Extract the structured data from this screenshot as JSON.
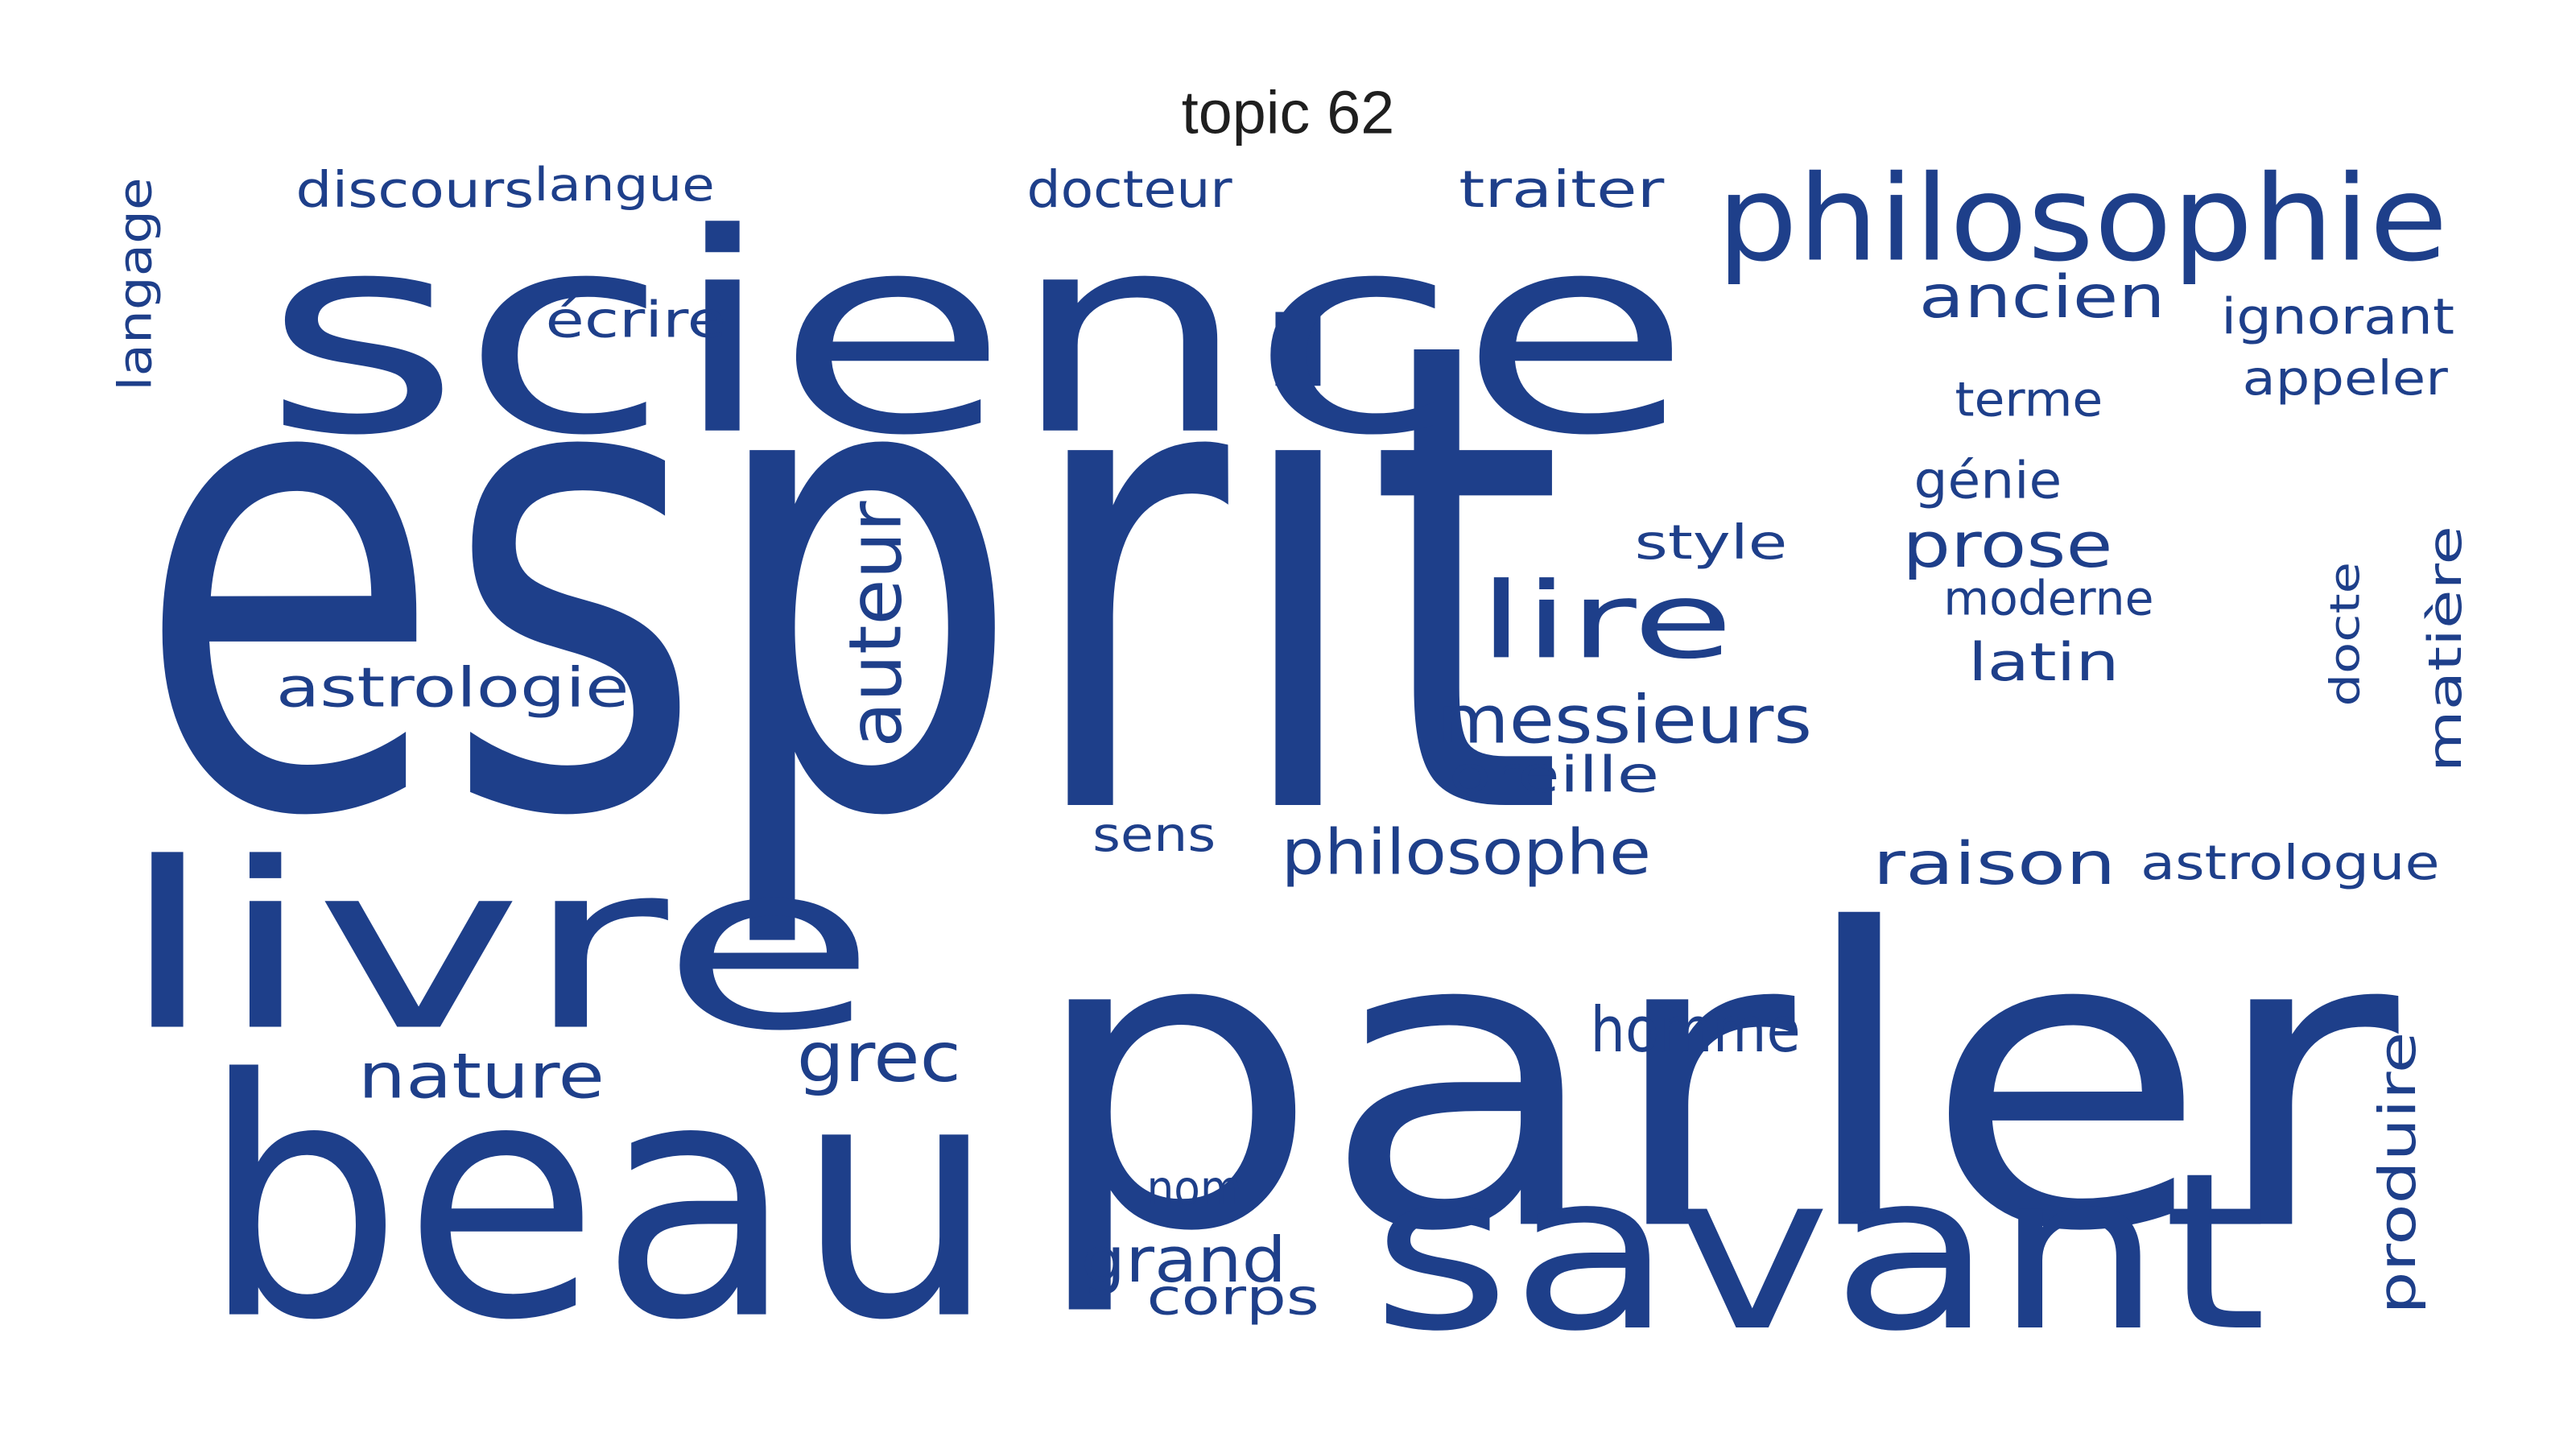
{
  "title": "topic 62",
  "colors": {
    "word": "#1e3f8a",
    "background": "#ffffff",
    "title": "#1f1f1f"
  },
  "words": [
    "esprit",
    "parler",
    "science",
    "beau",
    "savant",
    "livre",
    "philosophie",
    "lire",
    "auteur",
    "messieurs",
    "philosophe",
    "homme",
    "grec",
    "nature",
    "prose",
    "raison",
    "ancien",
    "astrologie",
    "grand",
    "discours",
    "langue",
    "docteur",
    "traiter",
    "écrire",
    "langage",
    "ignorant",
    "appeler",
    "terme",
    "génie",
    "style",
    "moderne",
    "latin",
    "oreille",
    "sens",
    "astrologue",
    "matière",
    "docte",
    "produire",
    "nom",
    "corps"
  ]
}
